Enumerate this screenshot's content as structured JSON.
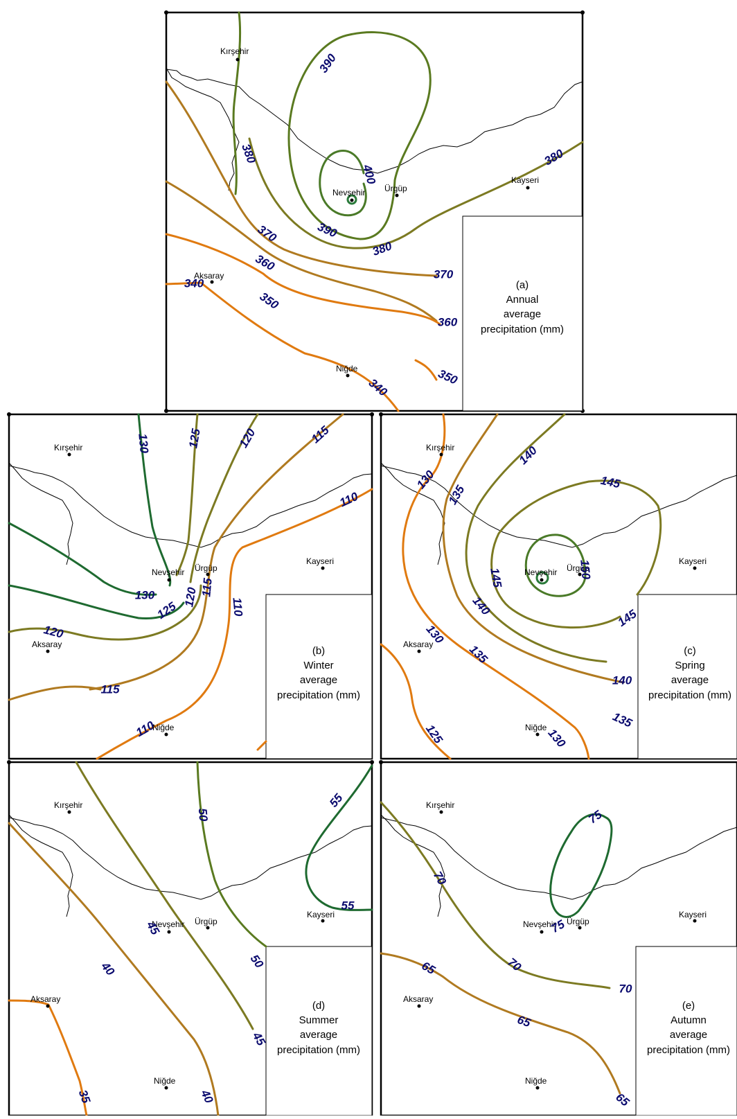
{
  "colors": {
    "isoline_low": "#e07a10",
    "isoline_mid": "#b07a20",
    "isoline_midhigh": "#7c7a22",
    "isoline_high": "#5a7a20",
    "isoline_top": "#1e6a30",
    "label": "#0a0a6e"
  },
  "maps": [
    {
      "id": "a",
      "caption": {
        "letter": "(a)",
        "season": "Annual",
        "line2": "average",
        "line3": "precipitation (mm)"
      },
      "cities": [
        "Kırşehir",
        "Nevşehir",
        "Ürgüp",
        "Kayseri",
        "Aksaray",
        "Niğde"
      ],
      "isolines": [
        "340",
        "340",
        "350",
        "350",
        "360",
        "360",
        "370",
        "370",
        "380",
        "380",
        "380",
        "390",
        "390",
        "400"
      ]
    },
    {
      "id": "b",
      "caption": {
        "letter": "(b)",
        "season": "Winter",
        "line2": "average",
        "line3": "precipitation (mm)"
      },
      "cities": [
        "Kırşehir",
        "Nevşehir",
        "Ürgüp",
        "Kayseri",
        "Aksaray",
        "Niğde"
      ],
      "isolines": [
        "130",
        "125",
        "120",
        "115",
        "110",
        "110",
        "130",
        "125",
        "120",
        "115",
        "110",
        "120",
        "115"
      ]
    },
    {
      "id": "c",
      "caption": {
        "letter": "(c)",
        "season": "Spring",
        "line2": "average",
        "line3": "precipitation (mm)"
      },
      "cities": [
        "Kırşehir",
        "Nevşehir",
        "Ürgüp",
        "Kayseri",
        "Aksaray",
        "Niğde"
      ],
      "isolines": [
        "130",
        "135",
        "140",
        "145",
        "150",
        "145",
        "140",
        "145",
        "130",
        "135",
        "140",
        "135",
        "125",
        "130"
      ]
    },
    {
      "id": "d",
      "caption": {
        "letter": "(d)",
        "season": "Summer",
        "line2": "average",
        "line3": "precipitation (mm)"
      },
      "cities": [
        "Kırşehir",
        "Nevşehir",
        "Ürgüp",
        "Kayseri",
        "Aksaray",
        "Niğde"
      ],
      "isolines": [
        "50",
        "55",
        "55",
        "45",
        "50",
        "40",
        "45",
        "35",
        "40"
      ]
    },
    {
      "id": "e",
      "caption": {
        "letter": "(e)",
        "season": "Autumn",
        "line2": "average",
        "line3": "precipitation (mm)"
      },
      "cities": [
        "Kırşehir",
        "Nevşehir",
        "Ürgüp",
        "Kayseri",
        "Aksaray",
        "Niğde"
      ],
      "isolines": [
        "75",
        "75",
        "70",
        "70",
        "70",
        "65",
        "65",
        "65"
      ]
    }
  ]
}
